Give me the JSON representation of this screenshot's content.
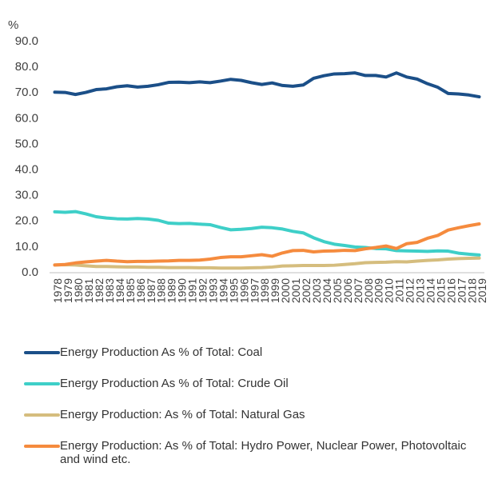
{
  "chart_data": {
    "type": "line",
    "y_label": "%",
    "categories": [
      "1978",
      "1979",
      "1980",
      "1981",
      "1982",
      "1983",
      "1984",
      "1985",
      "1986",
      "1987",
      "1988",
      "1989",
      "1990",
      "1991",
      "1992",
      "1993",
      "1994",
      "1995",
      "1996",
      "1997",
      "1998",
      "1999",
      "2000",
      "2001",
      "2002",
      "2003",
      "2004",
      "2005",
      "2006",
      "2007",
      "2008",
      "2009",
      "2010",
      "2011",
      "2012",
      "2013",
      "2014",
      "2015",
      "2016",
      "2017",
      "2018",
      "2019"
    ],
    "series": [
      {
        "name": "Energy Production As % of Total: Coal",
        "color": "#1b4f88",
        "values": [
          70.3,
          70.2,
          69.4,
          70.2,
          71.3,
          71.6,
          72.4,
          72.8,
          72.3,
          72.6,
          73.2,
          74.1,
          74.2,
          74.0,
          74.3,
          74.0,
          74.6,
          75.3,
          74.9,
          74.0,
          73.3,
          73.9,
          72.9,
          72.6,
          73.1,
          75.7,
          76.7,
          77.4,
          77.5,
          77.8,
          76.8,
          76.8,
          76.2,
          77.8,
          76.2,
          75.4,
          73.6,
          72.2,
          69.8,
          69.6,
          69.2,
          68.5
        ]
      },
      {
        "name": "Energy Production As % of Total: Crude Oil",
        "color": "#3ecfc8",
        "values": [
          23.7,
          23.5,
          23.8,
          22.9,
          21.8,
          21.3,
          21.0,
          20.9,
          21.1,
          20.9,
          20.4,
          19.3,
          19.1,
          19.2,
          18.9,
          18.7,
          17.6,
          16.7,
          16.9,
          17.2,
          17.7,
          17.5,
          17.0,
          16.1,
          15.5,
          13.6,
          12.1,
          11.1,
          10.6,
          10.0,
          9.8,
          9.4,
          9.3,
          8.6,
          8.5,
          8.4,
          8.3,
          8.5,
          8.4,
          7.6,
          7.2,
          6.9
        ]
      },
      {
        "name": "Energy Production: As % of Total: Natural Gas",
        "color": "#d5bd7e",
        "values": [
          3.0,
          3.1,
          3.0,
          2.7,
          2.4,
          2.4,
          2.3,
          2.2,
          2.2,
          2.1,
          2.1,
          2.0,
          2.0,
          2.0,
          1.9,
          1.9,
          1.8,
          1.8,
          1.8,
          1.9,
          2.0,
          2.2,
          2.6,
          2.7,
          2.8,
          2.8,
          2.8,
          2.9,
          3.2,
          3.5,
          3.9,
          4.0,
          4.1,
          4.3,
          4.2,
          4.5,
          4.8,
          5.0,
          5.3,
          5.5,
          5.6,
          5.7
        ]
      },
      {
        "name": "Energy Production: As % of Total: Hydro Power, Nuclear Power, Photovoltaic and wind etc.",
        "color": "#f58b3e",
        "values": [
          3.0,
          3.2,
          3.8,
          4.2,
          4.5,
          4.8,
          4.5,
          4.3,
          4.4,
          4.4,
          4.5,
          4.6,
          4.8,
          4.8,
          4.9,
          5.3,
          5.9,
          6.2,
          6.2,
          6.6,
          7.0,
          6.4,
          7.7,
          8.6,
          8.7,
          8.1,
          8.4,
          8.5,
          8.7,
          8.6,
          9.3,
          9.8,
          10.4,
          9.4,
          11.3,
          11.8,
          13.4,
          14.5,
          16.6,
          17.5,
          18.3,
          19.0
        ]
      }
    ],
    "ylim": [
      0,
      90
    ],
    "yticks": [
      {
        "value": 0,
        "label": "0.0"
      },
      {
        "value": 10,
        "label": "10.0"
      },
      {
        "value": 20,
        "label": "20.0"
      },
      {
        "value": 30,
        "label": "30.0"
      },
      {
        "value": 40,
        "label": "40.0"
      },
      {
        "value": 50,
        "label": "50.0"
      },
      {
        "value": 60,
        "label": "60.0"
      },
      {
        "value": 70,
        "label": "70.0"
      },
      {
        "value": 80,
        "label": "80.0"
      },
      {
        "value": 90,
        "label": "90.0"
      }
    ],
    "grid": false,
    "legend": "bottom"
  }
}
